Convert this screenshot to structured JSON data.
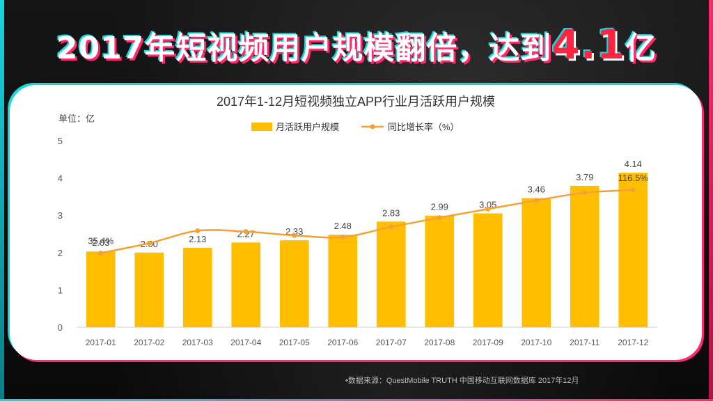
{
  "headline": {
    "prefix": "2017年短视频用户规模翻倍，达到",
    "highlight": "4.1",
    "suffix": "亿"
  },
  "colors": {
    "bar": "#FFBF00",
    "line": "#F5A033",
    "accent_cyan": "#18D6E0",
    "accent_pink": "#FF2A6D",
    "headline_highlight": "#FF2540"
  },
  "chart_data": {
    "type": "bar",
    "title": "2017年1-12月短视频独立APP行业月活跃用户规模",
    "unit_label": "单位：亿",
    "categories": [
      "2017-01",
      "2017-02",
      "2017-03",
      "2017-04",
      "2017-05",
      "2017-06",
      "2017-07",
      "2017-08",
      "2017-09",
      "2017-10",
      "2017-11",
      "2017-12"
    ],
    "series": [
      {
        "name": "月活跃用户规模",
        "kind": "bar",
        "values": [
          2.03,
          2.0,
          2.13,
          2.27,
          2.33,
          2.48,
          2.83,
          2.99,
          3.05,
          3.46,
          3.79,
          4.14
        ],
        "labels": [
          "2.03",
          "2.00",
          "2.13",
          "2.27",
          "2.33",
          "2.48",
          "2.83",
          "2.99",
          "3.05",
          "3.46",
          "3.79",
          "4.14"
        ]
      },
      {
        "name": "同比增长率（%）",
        "kind": "line",
        "values": [
          35.4,
          48,
          64,
          63,
          58,
          56,
          69,
          81,
          92,
          103,
          113,
          116.5
        ],
        "visible_labels": {
          "0": "35.4%",
          "11": "116.5%"
        }
      }
    ],
    "y_axis": {
      "ticks": [
        0,
        1,
        2,
        3,
        4,
        5
      ],
      "ylim": [
        0,
        5
      ]
    },
    "line_axis": {
      "range": [
        -60,
        180
      ],
      "hidden": true
    },
    "legend_position": "top-center",
    "grid": false
  },
  "source": "•数据来源：QuestMobile TRUTH 中国移动互联网数据库 2017年12月"
}
